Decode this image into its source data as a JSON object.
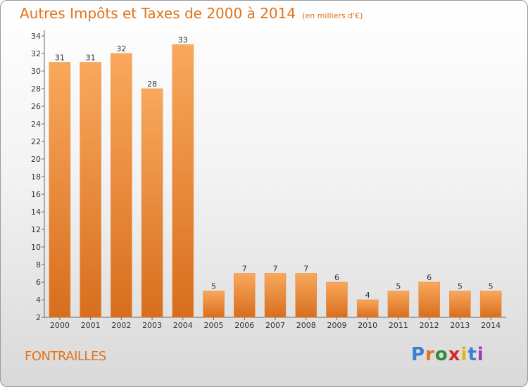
{
  "title": "Autres Impôts et Taxes de 2000 à 2014",
  "unit": "(en milliers d'€)",
  "commune": "FONTRAILLES",
  "logo": {
    "text": "Proxiti",
    "colors": [
      "#3b7fd0",
      "#e0731c",
      "#2e8b3a",
      "#d02a2a",
      "#e0b21c",
      "#3b7fd0",
      "#9b3fb0"
    ]
  },
  "colors": {
    "accent": "#e0731c",
    "bar_light": "#f9a85c",
    "bar_dark": "#d86e1e"
  },
  "chart_data": {
    "type": "bar",
    "categories": [
      "2000",
      "2001",
      "2002",
      "2003",
      "2004",
      "2005",
      "2006",
      "2007",
      "2008",
      "2009",
      "2010",
      "2011",
      "2012",
      "2013",
      "2014"
    ],
    "values": [
      31,
      31,
      32,
      28,
      33,
      5,
      7,
      7,
      7,
      6,
      4,
      5,
      6,
      5,
      5
    ],
    "ylim": [
      2,
      34
    ],
    "yticks": [
      2,
      4,
      6,
      8,
      10,
      12,
      14,
      16,
      18,
      20,
      22,
      24,
      26,
      28,
      30,
      32,
      34
    ],
    "grid": false,
    "legend": "none"
  }
}
